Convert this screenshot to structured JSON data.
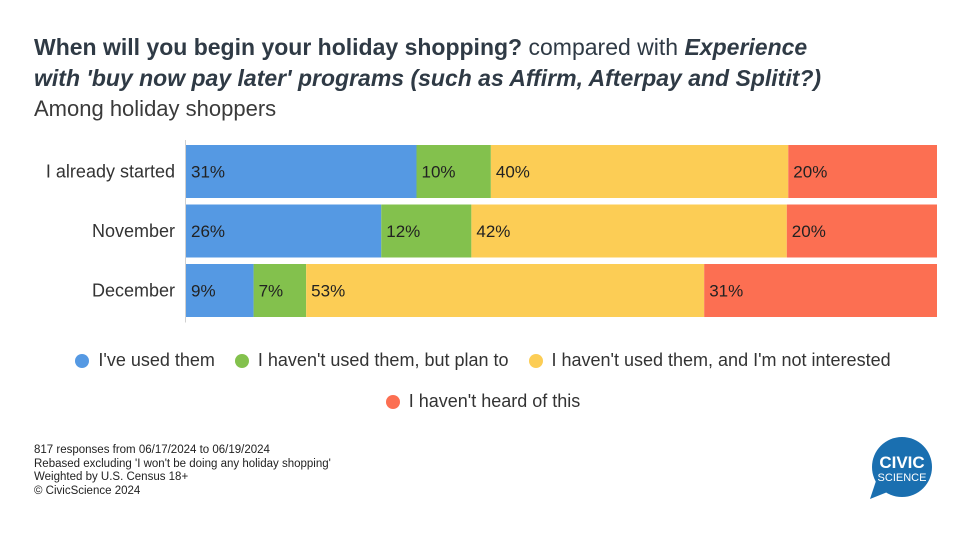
{
  "title": {
    "bold1": "When will you begin your holiday shopping?",
    "normal1": " compared with ",
    "bold_italic1": "Experience",
    "bold_italic2": "with 'buy now pay later' programs (such as Affirm, Afterpay and Splitit?)"
  },
  "subtitle": "Among holiday shoppers",
  "chart_data": {
    "type": "bar",
    "orientation": "horizontal",
    "stacked": true,
    "categories": [
      "I already started",
      "November",
      "December"
    ],
    "series": [
      {
        "name": "I've used them",
        "color": "#5599e3",
        "values": [
          31,
          26,
          9
        ]
      },
      {
        "name": "I haven't used them, but plan to",
        "color": "#83c14d",
        "values": [
          10,
          12,
          7
        ]
      },
      {
        "name": "I haven't used them, and I'm not interested",
        "color": "#fccd55",
        "values": [
          40,
          42,
          53
        ]
      },
      {
        "name": "I haven't heard of this",
        "color": "#fc6f52",
        "values": [
          20,
          20,
          31
        ]
      }
    ],
    "value_suffix": "%",
    "legend_position": "bottom"
  },
  "footnotes": [
    "817 responses from 06/17/2024 to 06/19/2024",
    "Rebased excluding 'I won't be doing any holiday shopping'",
    "Weighted by U.S. Census 18+",
    "© CivicScience 2024"
  ],
  "logo": {
    "line1": "CIVIC",
    "line2": "SCIENCE",
    "color": "#1a6fb0"
  }
}
